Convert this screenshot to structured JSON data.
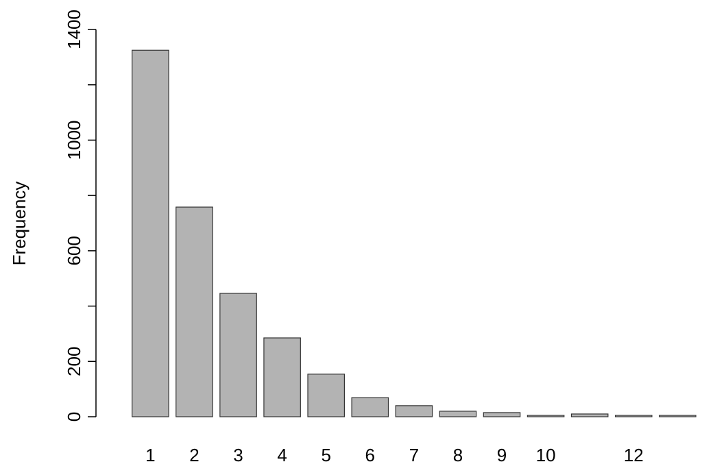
{
  "chart_data": {
    "type": "bar",
    "y_label": "Frequency",
    "categories": [
      "1",
      "2",
      "3",
      "4",
      "5",
      "6",
      "7",
      "8",
      "9",
      "10",
      null,
      "12",
      null
    ],
    "values": [
      1325,
      758,
      446,
      285,
      154,
      69,
      40,
      20,
      15,
      5,
      10,
      5,
      5
    ],
    "color": "#b3b3b3",
    "ylim": [
      0,
      1400
    ],
    "yticks": [
      0,
      200,
      {
        "value": 400,
        "label": null
      },
      600,
      {
        "value": 800,
        "label": null
      },
      1000,
      {
        "value": 1200,
        "label": null
      },
      1400
    ],
    "grid": false
  }
}
